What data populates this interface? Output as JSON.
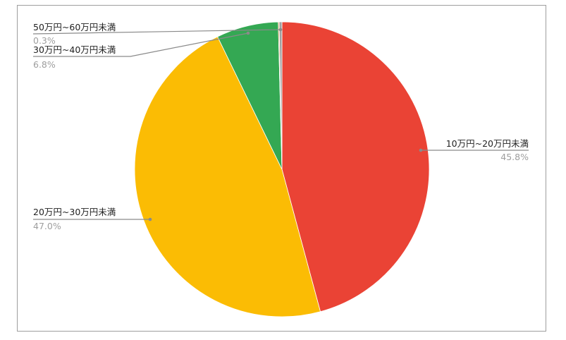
{
  "chart_data": {
    "type": "pie",
    "start": "top",
    "direction": "clockwise",
    "slices": [
      {
        "label": "10万円~20万円未満",
        "value": 45.8,
        "pct_label": "45.8%",
        "color": "#ea4335"
      },
      {
        "label": "20万円~30万円未満",
        "value": 47.0,
        "pct_label": "47.0%",
        "color": "#fbbc04"
      },
      {
        "label": "30万円~40万円未満",
        "value": 6.8,
        "pct_label": "6.8%",
        "color": "#34a853"
      },
      {
        "label": "",
        "value": 0.1,
        "pct_label": "",
        "color": "#ff6d01"
      },
      {
        "label": "50万円~60万円未満",
        "value": 0.3,
        "pct_label": "0.3%",
        "color": "#a0a0a0"
      }
    ],
    "legend": "none"
  }
}
